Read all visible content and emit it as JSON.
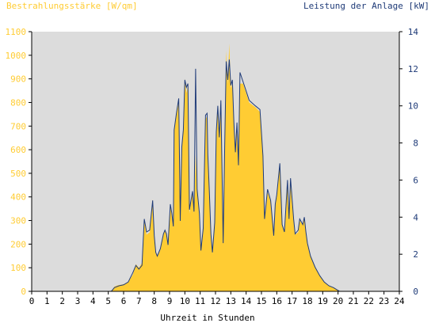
{
  "chart_data": {
    "type": "area",
    "left_axis_label": "Bestrahlungsstärke [W/qm]",
    "right_axis_label": "Leistung der Anlage [kW]",
    "xlabel": "Uhrzeit in Stunden",
    "x_ticks": [
      "0",
      "1",
      "2",
      "3",
      "4",
      "5",
      "6",
      "7",
      "8",
      "9",
      "10",
      "11",
      "12",
      "13",
      "14",
      "15",
      "16",
      "17",
      "18",
      "19",
      "20",
      "21",
      "22",
      "23",
      "24"
    ],
    "y_left_ticks": [
      "0",
      "100",
      "200",
      "300",
      "400",
      "500",
      "600",
      "700",
      "800",
      "900",
      "1000",
      "1100"
    ],
    "y_right_ticks": [
      "0",
      "2",
      "4",
      "6",
      "8",
      "10",
      "12",
      "14"
    ],
    "y_left_lim": [
      0,
      1100
    ],
    "y_right_lim": [
      0,
      14
    ],
    "x_lim": [
      0,
      24
    ],
    "grid": false,
    "colors": {
      "plot_background": "#dcdcdc",
      "irradiance_fill": "#ffcc33",
      "power_line": "#1f3b78",
      "left_axis_text": "#ffcc33",
      "right_axis_text": "#1f3b78"
    },
    "series": [
      {
        "key": "irradiance",
        "axis": "left",
        "render": "area",
        "points": [
          [
            0,
            0
          ],
          [
            5.2,
            0
          ],
          [
            5.4,
            20
          ],
          [
            5.6,
            25
          ],
          [
            5.8,
            28
          ],
          [
            6.0,
            30
          ],
          [
            6.3,
            40
          ],
          [
            6.6,
            70
          ],
          [
            6.8,
            115
          ],
          [
            7.0,
            100
          ],
          [
            7.2,
            120
          ],
          [
            7.35,
            300
          ],
          [
            7.5,
            240
          ],
          [
            7.7,
            250
          ],
          [
            7.9,
            390
          ],
          [
            8.0,
            230
          ],
          [
            8.1,
            170
          ],
          [
            8.2,
            150
          ],
          [
            8.4,
            175
          ],
          [
            8.6,
            240
          ],
          [
            8.7,
            260
          ],
          [
            8.8,
            240
          ],
          [
            8.9,
            190
          ],
          [
            9.05,
            360
          ],
          [
            9.15,
            320
          ],
          [
            9.25,
            270
          ],
          [
            9.3,
            680
          ],
          [
            9.45,
            750
          ],
          [
            9.6,
            800
          ],
          [
            9.7,
            300
          ],
          [
            9.8,
            600
          ],
          [
            9.9,
            680
          ],
          [
            10.0,
            900
          ],
          [
            10.1,
            840
          ],
          [
            10.2,
            870
          ],
          [
            10.3,
            330
          ],
          [
            10.5,
            420
          ],
          [
            10.6,
            330
          ],
          [
            10.7,
            580
          ],
          [
            10.8,
            430
          ],
          [
            10.95,
            320
          ],
          [
            11.05,
            170
          ],
          [
            11.2,
            260
          ],
          [
            11.35,
            730
          ],
          [
            11.45,
            740
          ],
          [
            11.5,
            580
          ],
          [
            11.6,
            410
          ],
          [
            11.7,
            240
          ],
          [
            11.8,
            160
          ],
          [
            11.95,
            280
          ],
          [
            12.05,
            660
          ],
          [
            12.15,
            770
          ],
          [
            12.25,
            640
          ],
          [
            12.35,
            800
          ],
          [
            12.5,
            200
          ],
          [
            12.6,
            600
          ],
          [
            12.7,
            1020
          ],
          [
            12.8,
            880
          ],
          [
            12.9,
            1050
          ],
          [
            13.0,
            860
          ],
          [
            13.1,
            880
          ],
          [
            13.2,
            700
          ],
          [
            13.3,
            580
          ],
          [
            13.4,
            700
          ],
          [
            13.5,
            520
          ],
          [
            13.6,
            880
          ],
          [
            13.8,
            880
          ],
          [
            14.0,
            840
          ],
          [
            14.2,
            800
          ],
          [
            14.6,
            780
          ],
          [
            14.9,
            760
          ],
          [
            15.1,
            560
          ],
          [
            15.2,
            300
          ],
          [
            15.4,
            420
          ],
          [
            15.6,
            380
          ],
          [
            15.8,
            230
          ],
          [
            15.9,
            360
          ],
          [
            16.0,
            400
          ],
          [
            16.2,
            530
          ],
          [
            16.35,
            280
          ],
          [
            16.5,
            250
          ],
          [
            16.7,
            460
          ],
          [
            16.8,
            300
          ],
          [
            16.9,
            450
          ],
          [
            17.1,
            300
          ],
          [
            17.2,
            240
          ],
          [
            17.4,
            250
          ],
          [
            17.5,
            300
          ],
          [
            17.7,
            280
          ],
          [
            17.8,
            310
          ],
          [
            17.9,
            250
          ],
          [
            18.0,
            200
          ],
          [
            18.2,
            150
          ],
          [
            18.5,
            100
          ],
          [
            18.8,
            65
          ],
          [
            19.1,
            40
          ],
          [
            19.4,
            25
          ],
          [
            19.7,
            15
          ],
          [
            19.9,
            10
          ],
          [
            20.0,
            5
          ],
          [
            20.1,
            0
          ],
          [
            24,
            0
          ]
        ]
      },
      {
        "key": "power",
        "axis": "right",
        "render": "line",
        "points": [
          [
            0,
            0
          ],
          [
            5.2,
            0
          ],
          [
            5.4,
            0.2
          ],
          [
            5.7,
            0.3
          ],
          [
            6.0,
            0.35
          ],
          [
            6.3,
            0.5
          ],
          [
            6.6,
            1.0
          ],
          [
            6.8,
            1.4
          ],
          [
            7.0,
            1.2
          ],
          [
            7.2,
            1.4
          ],
          [
            7.35,
            3.9
          ],
          [
            7.5,
            3.2
          ],
          [
            7.7,
            3.3
          ],
          [
            7.9,
            4.9
          ],
          [
            8.0,
            3.0
          ],
          [
            8.1,
            2.1
          ],
          [
            8.2,
            1.9
          ],
          [
            8.4,
            2.3
          ],
          [
            8.6,
            3.1
          ],
          [
            8.7,
            3.3
          ],
          [
            8.8,
            3.1
          ],
          [
            8.9,
            2.5
          ],
          [
            9.05,
            4.7
          ],
          [
            9.15,
            4.2
          ],
          [
            9.25,
            3.5
          ],
          [
            9.3,
            8.7
          ],
          [
            9.45,
            9.6
          ],
          [
            9.6,
            10.4
          ],
          [
            9.7,
            3.8
          ],
          [
            9.8,
            7.8
          ],
          [
            9.9,
            8.7
          ],
          [
            10.0,
            11.4
          ],
          [
            10.1,
            11.0
          ],
          [
            10.2,
            11.2
          ],
          [
            10.3,
            4.4
          ],
          [
            10.5,
            5.4
          ],
          [
            10.6,
            4.3
          ],
          [
            10.7,
            12.0
          ],
          [
            10.8,
            5.5
          ],
          [
            10.95,
            4.2
          ],
          [
            11.05,
            2.2
          ],
          [
            11.2,
            3.4
          ],
          [
            11.35,
            9.5
          ],
          [
            11.45,
            9.6
          ],
          [
            11.5,
            7.4
          ],
          [
            11.6,
            5.3
          ],
          [
            11.7,
            3.1
          ],
          [
            11.8,
            2.1
          ],
          [
            11.95,
            3.7
          ],
          [
            12.05,
            8.6
          ],
          [
            12.15,
            10.0
          ],
          [
            12.25,
            8.3
          ],
          [
            12.35,
            10.3
          ],
          [
            12.5,
            2.6
          ],
          [
            12.6,
            7.8
          ],
          [
            12.7,
            12.4
          ],
          [
            12.8,
            11.4
          ],
          [
            12.9,
            12.5
          ],
          [
            13.0,
            11.1
          ],
          [
            13.1,
            11.4
          ],
          [
            13.2,
            9.1
          ],
          [
            13.3,
            7.5
          ],
          [
            13.4,
            9.1
          ],
          [
            13.5,
            6.8
          ],
          [
            13.6,
            11.8
          ],
          [
            13.8,
            11.3
          ],
          [
            14.0,
            10.8
          ],
          [
            14.2,
            10.3
          ],
          [
            14.6,
            10.0
          ],
          [
            14.9,
            9.8
          ],
          [
            15.1,
            7.3
          ],
          [
            15.2,
            3.9
          ],
          [
            15.4,
            5.5
          ],
          [
            15.6,
            4.9
          ],
          [
            15.8,
            3.0
          ],
          [
            15.9,
            4.7
          ],
          [
            16.0,
            5.2
          ],
          [
            16.2,
            6.9
          ],
          [
            16.35,
            3.6
          ],
          [
            16.5,
            3.2
          ],
          [
            16.7,
            6.0
          ],
          [
            16.8,
            3.9
          ],
          [
            16.9,
            6.1
          ],
          [
            17.1,
            3.9
          ],
          [
            17.2,
            3.1
          ],
          [
            17.4,
            3.3
          ],
          [
            17.5,
            3.9
          ],
          [
            17.7,
            3.6
          ],
          [
            17.8,
            4.0
          ],
          [
            17.9,
            3.2
          ],
          [
            18.0,
            2.6
          ],
          [
            18.2,
            1.9
          ],
          [
            18.5,
            1.3
          ],
          [
            18.8,
            0.85
          ],
          [
            19.1,
            0.5
          ],
          [
            19.4,
            0.3
          ],
          [
            19.7,
            0.2
          ],
          [
            19.9,
            0.1
          ],
          [
            20.0,
            0.05
          ],
          [
            20.1,
            0
          ],
          [
            24,
            0
          ]
        ]
      }
    ]
  }
}
